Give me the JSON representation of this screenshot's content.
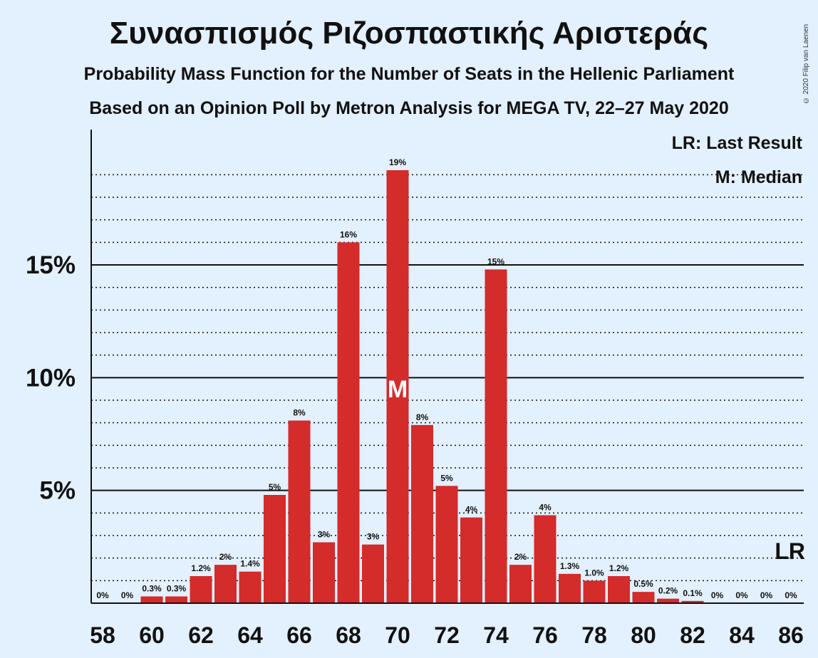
{
  "title": "Συνασπισμός Ριζοσπαστικής Αριστεράς",
  "subtitle1": "Probability Mass Function for the Number of Seats in the Hellenic Parliament",
  "subtitle2": "Based on an Opinion Poll by Metron Analysis for MEGA TV, 22–27 May 2020",
  "copyright": "© 2020 Filip van Laenen",
  "legend": {
    "lr": "LR: Last Result",
    "m": "M: Median"
  },
  "colors": {
    "bar": "#d42b2b",
    "background": "#e3f0fd"
  },
  "chart_data": {
    "type": "bar",
    "title": "Συνασπισμός Ριζοσπαστικής Αριστεράς",
    "xlabel": "",
    "ylabel": "",
    "ylim": [
      0,
      21
    ],
    "yticks": [
      "5%",
      "10%",
      "15%"
    ],
    "xticks": [
      "58",
      "60",
      "62",
      "64",
      "66",
      "68",
      "70",
      "72",
      "74",
      "76",
      "78",
      "80",
      "82",
      "84",
      "86"
    ],
    "categories": [
      58,
      59,
      60,
      61,
      62,
      63,
      64,
      65,
      66,
      67,
      68,
      69,
      70,
      71,
      72,
      73,
      74,
      75,
      76,
      77,
      78,
      79,
      80,
      81,
      82,
      83,
      84,
      85,
      86
    ],
    "values": [
      0,
      0,
      0.3,
      0.3,
      1.2,
      1.7,
      1.4,
      4.8,
      8.1,
      2.7,
      16.0,
      2.6,
      19.2,
      7.9,
      5.2,
      3.8,
      14.8,
      1.7,
      3.9,
      1.3,
      1.0,
      1.2,
      0.5,
      0.2,
      0.1,
      0,
      0,
      0,
      0
    ],
    "labels": [
      "0%",
      "0%",
      "0.3%",
      "0.3%",
      "1.2%",
      "2%",
      "1.4%",
      "5%",
      "8%",
      "3%",
      "16%",
      "3%",
      "19%",
      "8%",
      "5%",
      "4%",
      "15%",
      "2%",
      "4%",
      "1.3%",
      "1.0%",
      "1.2%",
      "0.5%",
      "0.2%",
      "0.1%",
      "0%",
      "0%",
      "0%",
      "0%"
    ],
    "median": 70,
    "median_label": "M",
    "last_result": 86,
    "last_result_label": "LR",
    "grid": true
  }
}
